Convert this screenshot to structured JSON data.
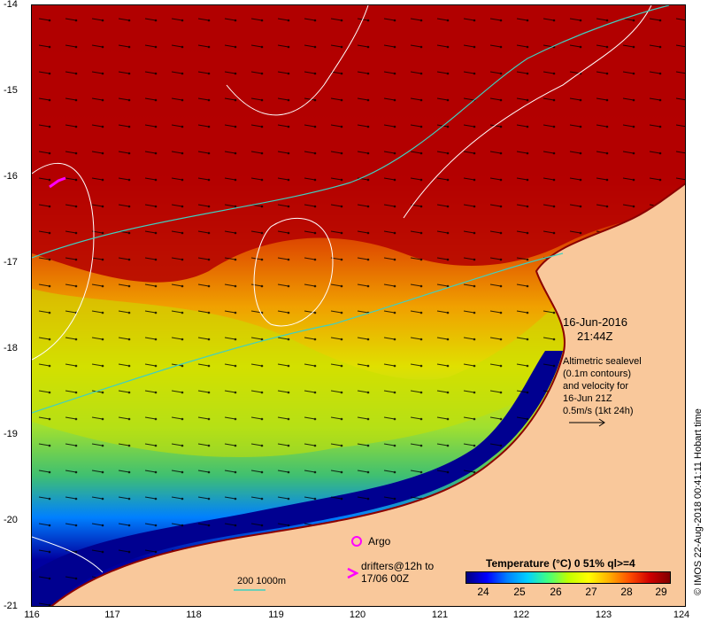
{
  "map": {
    "y_axis_labels": [
      "-14",
      "-15",
      "-16",
      "-17",
      "-18",
      "-19",
      "-20",
      "-21"
    ],
    "x_axis_labels": [
      "116",
      "117",
      "118",
      "119",
      "120",
      "121",
      "122",
      "123",
      "124"
    ],
    "date_line1": "16-Jun-2016",
    "date_line2": "21:44Z",
    "sealevel_note": [
      "Altimetric sealevel",
      "(0.1m contours)",
      "and velocity for",
      "16-Jun 21Z",
      "0.5m/s (1kt 24h)"
    ],
    "argo_label": "Argo",
    "drifters_label_line1": "drifters@12h to",
    "drifters_label_line2": "17/06 00Z",
    "isobath_label": "200  1000m",
    "colorbar_title": "Temperature (°C) 0 51% ql>=4",
    "colorbar_ticks": [
      "24",
      "25",
      "26",
      "27",
      "28",
      "29"
    ],
    "credit": "© IMOS 22-Aug-2018 00:41:11 Hobart time",
    "colors": {
      "land": "#f9c89b",
      "warm": "#b00000",
      "cold": "#000080",
      "contour": "#ffffff",
      "isobath": "#40d0c0",
      "argo": "#ff00ff"
    }
  }
}
